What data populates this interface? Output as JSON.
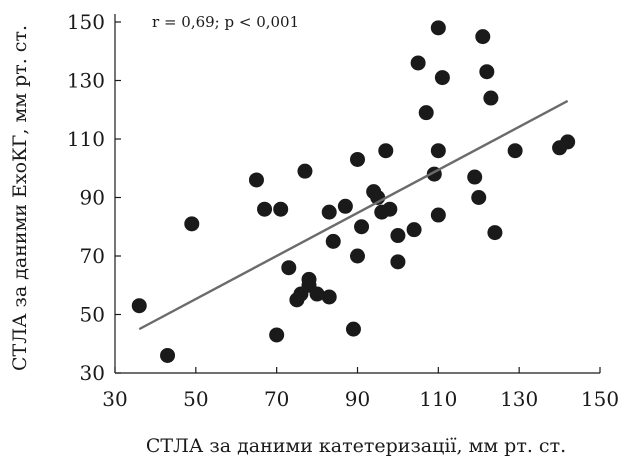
{
  "chart_data": {
    "type": "scatter",
    "title": "",
    "xlabel": "СТЛА за даними катетеризації, мм рт. ст.",
    "ylabel": "СТЛА за даними ЕхоКГ, мм рт. ст.",
    "annotation": "r = 0,69; p < 0,001",
    "xlim": [
      30,
      150
    ],
    "ylim": [
      30,
      150
    ],
    "xticks": [
      30,
      50,
      70,
      90,
      110,
      130,
      150
    ],
    "yticks": [
      30,
      50,
      70,
      90,
      110,
      130,
      150
    ],
    "grid": false,
    "points": [
      {
        "x": 36,
        "y": 53
      },
      {
        "x": 43,
        "y": 36
      },
      {
        "x": 49,
        "y": 81
      },
      {
        "x": 65,
        "y": 96
      },
      {
        "x": 67,
        "y": 86
      },
      {
        "x": 70,
        "y": 43
      },
      {
        "x": 71,
        "y": 86
      },
      {
        "x": 73,
        "y": 66
      },
      {
        "x": 75,
        "y": 55
      },
      {
        "x": 76,
        "y": 57
      },
      {
        "x": 77,
        "y": 99
      },
      {
        "x": 78,
        "y": 60
      },
      {
        "x": 78,
        "y": 62
      },
      {
        "x": 80,
        "y": 57
      },
      {
        "x": 83,
        "y": 56
      },
      {
        "x": 83,
        "y": 85
      },
      {
        "x": 84,
        "y": 75
      },
      {
        "x": 87,
        "y": 87
      },
      {
        "x": 89,
        "y": 45
      },
      {
        "x": 90,
        "y": 70
      },
      {
        "x": 90,
        "y": 103
      },
      {
        "x": 91,
        "y": 80
      },
      {
        "x": 94,
        "y": 92
      },
      {
        "x": 95,
        "y": 90
      },
      {
        "x": 96,
        "y": 85
      },
      {
        "x": 97,
        "y": 106
      },
      {
        "x": 98,
        "y": 86
      },
      {
        "x": 100,
        "y": 77
      },
      {
        "x": 100,
        "y": 68
      },
      {
        "x": 104,
        "y": 79
      },
      {
        "x": 105,
        "y": 136
      },
      {
        "x": 107,
        "y": 119
      },
      {
        "x": 109,
        "y": 98
      },
      {
        "x": 110,
        "y": 84
      },
      {
        "x": 110,
        "y": 106
      },
      {
        "x": 110,
        "y": 148
      },
      {
        "x": 111,
        "y": 131
      },
      {
        "x": 119,
        "y": 97
      },
      {
        "x": 120,
        "y": 90
      },
      {
        "x": 121,
        "y": 145
      },
      {
        "x": 122,
        "y": 133
      },
      {
        "x": 123,
        "y": 124
      },
      {
        "x": 124,
        "y": 78
      },
      {
        "x": 129,
        "y": 106
      },
      {
        "x": 140,
        "y": 107
      },
      {
        "x": 142,
        "y": 109
      }
    ],
    "regression_line": {
      "x": [
        36,
        142
      ],
      "y": [
        45,
        123
      ]
    }
  }
}
